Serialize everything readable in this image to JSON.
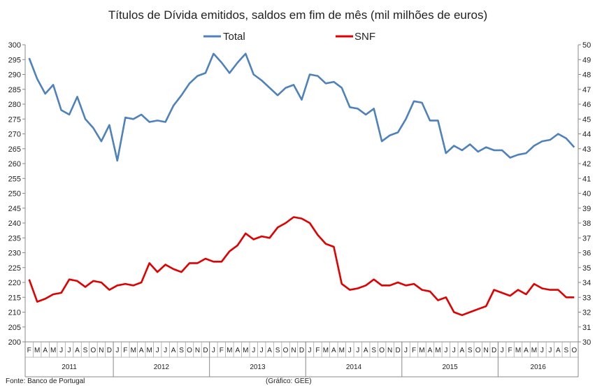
{
  "chart_data": {
    "type": "line",
    "title": "Títulos de Dívida emitidos, saldos em fim de mês  (mil milhões de euros)",
    "left_axis": {
      "ylim": [
        200,
        300
      ],
      "step": 5,
      "ticks": [
        "200",
        "205",
        "210",
        "215",
        "220",
        "225",
        "230",
        "235",
        "240",
        "245",
        "250",
        "255",
        "260",
        "265",
        "270",
        "275",
        "280",
        "285",
        "290",
        "295",
        "300"
      ]
    },
    "right_axis": {
      "ylim": [
        30,
        50
      ],
      "step": 1,
      "ticks": [
        "30",
        "31",
        "32",
        "33",
        "34",
        "35",
        "36",
        "37",
        "38",
        "39",
        "40",
        "41",
        "42",
        "43",
        "44",
        "45",
        "46",
        "47",
        "48",
        "49",
        "50"
      ]
    },
    "month_labels": [
      "F",
      "M",
      "A",
      "M",
      "J",
      "J",
      "A",
      "S",
      "O",
      "N",
      "D",
      "J",
      "F",
      "M",
      "A",
      "M",
      "J",
      "J",
      "A",
      "S",
      "O",
      "N",
      "D",
      "J",
      "F",
      "M",
      "A",
      "M",
      "J",
      "J",
      "A",
      "S",
      "O",
      "N",
      "D",
      "J",
      "F",
      "M",
      "A",
      "M",
      "J",
      "J",
      "A",
      "S",
      "O",
      "N",
      "D",
      "J",
      "F",
      "M",
      "A",
      "M",
      "J",
      "J",
      "A",
      "S",
      "O",
      "N",
      "D",
      "J",
      "F",
      "M",
      "A",
      "M",
      "J",
      "J",
      "A",
      "S",
      "O"
    ],
    "years": [
      {
        "label": "2011",
        "start": 0,
        "end": 10
      },
      {
        "label": "2012",
        "start": 11,
        "end": 22
      },
      {
        "label": "2013",
        "start": 23,
        "end": 34
      },
      {
        "label": "2014",
        "start": 35,
        "end": 46
      },
      {
        "label": "2015",
        "start": 47,
        "end": 58
      },
      {
        "label": "2016",
        "start": 59,
        "end": 68
      }
    ],
    "series": [
      {
        "name": "Total",
        "axis": "left",
        "color": "#4f81bd",
        "values": [
          295.5,
          288.5,
          283.5,
          286.5,
          278.0,
          276.5,
          282.5,
          275.0,
          272.0,
          267.5,
          273.0,
          261.0,
          275.5,
          275.0,
          276.5,
          274.0,
          274.5,
          274.0,
          279.5,
          283.0,
          287.0,
          289.5,
          290.5,
          297.0,
          294.0,
          290.5,
          294.0,
          297.0,
          290.0,
          288.0,
          285.5,
          283.0,
          285.5,
          286.5,
          281.5,
          290.0,
          289.5,
          287.0,
          287.5,
          285.5,
          279.0,
          278.5,
          276.5,
          278.5,
          267.5,
          269.5,
          270.5,
          275.0,
          281.0,
          280.5,
          274.5,
          274.5,
          263.5,
          266.0,
          264.5,
          266.5,
          264.0,
          265.5,
          264.5,
          264.5,
          262.0,
          263.0,
          263.5,
          266.0,
          267.5,
          268.0,
          270.0,
          268.5,
          265.5
        ]
      },
      {
        "name": "SNF",
        "axis": "right",
        "color": "#e00000",
        "values": [
          34.2,
          32.7,
          32.9,
          33.2,
          33.3,
          34.2,
          34.1,
          33.7,
          34.1,
          34.0,
          33.5,
          33.8,
          33.9,
          33.8,
          34.0,
          35.3,
          34.7,
          35.2,
          34.9,
          34.7,
          35.3,
          35.3,
          35.6,
          35.4,
          35.4,
          36.1,
          36.5,
          37.3,
          36.9,
          37.1,
          37.0,
          37.7,
          38.0,
          38.4,
          38.3,
          38.0,
          37.2,
          36.6,
          36.4,
          33.9,
          33.5,
          33.6,
          33.8,
          34.2,
          33.8,
          33.8,
          34.0,
          33.8,
          33.9,
          33.5,
          33.4,
          32.8,
          33.0,
          32.0,
          31.8,
          32.0,
          32.2,
          32.4,
          33.5,
          33.3,
          33.1,
          33.5,
          33.2,
          33.9,
          33.6,
          33.5,
          33.5,
          33.0,
          33.0
        ]
      }
    ],
    "grid": false
  },
  "footer": {
    "source": "Fonte: Banco de Portugal",
    "credit": "(Gráfico: GEE)"
  }
}
